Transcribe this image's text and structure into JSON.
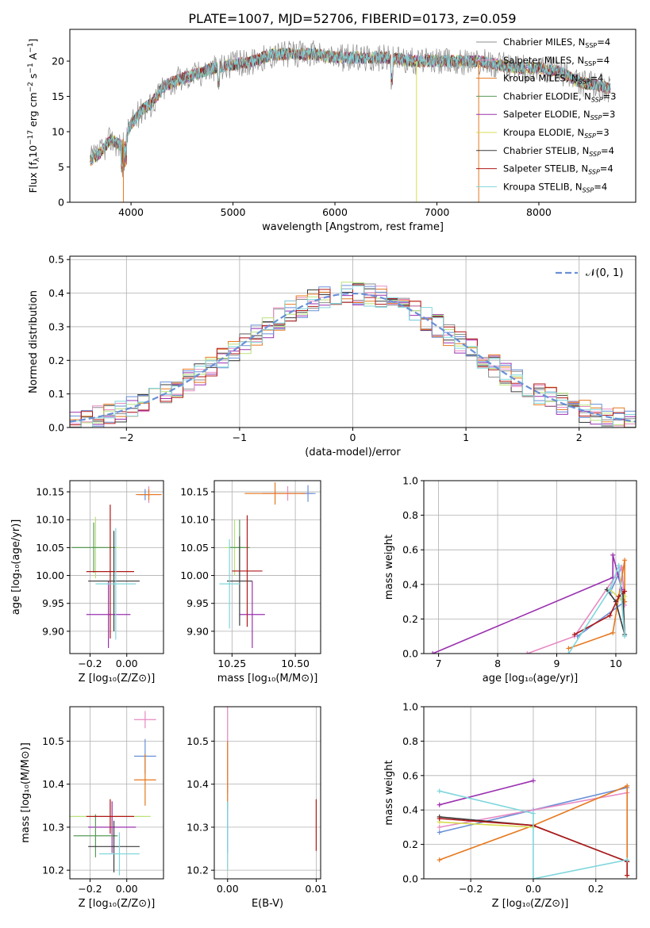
{
  "figure_title": "PLATE=1007, MJD=52706, FIBERID=0173, z=0.059",
  "colors": {
    "Chabrier MILES": "#8c8c8c",
    "Salpeter MILES": "#e78ac3",
    "Kroupa MILES": "#e6781e",
    "Chabrier ELODIE": "#5a9a5a",
    "Salpeter ELODIE": "#9b30b0",
    "Kroupa ELODIE": "#d8dc50",
    "Chabrier STELIB": "#3a3a3a",
    "Salpeter STELIB": "#b01818",
    "Kroupa STELIB": "#7fd6dc",
    "blue": "#6a8fd6",
    "lightgreen": "#b9e27a",
    "grid": "#b0b0b0"
  },
  "panels": {
    "spectrum": {
      "xlabel": "wavelength [Angstrom, rest frame]",
      "ylabel_main": "Flux [f",
      "ylabel_sub": "λ",
      "ylabel_rest": "10",
      "ylabel_exp": "−17",
      "ylabel_unit": " erg cm",
      "ylabel_u1": "−2",
      "ylabel_s": " s",
      "ylabel_u2": "−1",
      "ylabel_A": " A",
      "ylabel_u3": "−1",
      "ylabel_end": "]",
      "legend": [
        {
          "label": "Chabrier MILES, N",
          "sub": "SSP",
          "val": "=4"
        },
        {
          "label": "Salpeter MILES, N",
          "sub": "SSP",
          "val": "=4"
        },
        {
          "label": "Kroupa MILES, N",
          "sub": "SSP",
          "val": "=4"
        },
        {
          "label": "Chabrier ELODIE, N",
          "sub": "SSP",
          "val": "=3"
        },
        {
          "label": "Salpeter ELODIE, N",
          "sub": "SSP",
          "val": "=3"
        },
        {
          "label": "Kroupa ELODIE, N",
          "sub": "SSP",
          "val": "=3"
        },
        {
          "label": "Chabrier STELIB, N",
          "sub": "SSP",
          "val": "=4"
        },
        {
          "label": "Salpeter STELIB, N",
          "sub": "SSP",
          "val": "=4"
        },
        {
          "label": "Kroupa STELIB, N",
          "sub": "SSP",
          "val": "=4"
        }
      ]
    },
    "residuals": {
      "xlabel": "(data-model)/error",
      "ylabel": "Normed distribution",
      "legend": "𝒩(0, 1)"
    },
    "age_vs_Z": {
      "xlabel": "Z [log₁₀(Z/Z⊙)]",
      "ylabel": "age  [log₁₀(age/yr)]"
    },
    "age_vs_mass": {
      "xlabel": "mass [log₁₀(M/M⊙)]"
    },
    "weight_vs_age": {
      "xlabel": "age  [log₁₀(age/yr)]",
      "ylabel": "mass weight"
    },
    "mass_vs_Z": {
      "xlabel": "Z [log₁₀(Z/Z⊙)]",
      "ylabel": "mass [log₁₀(M/M⊙)]"
    },
    "mass_vs_ebv": {
      "xlabel": "E(B-V)"
    },
    "weight_vs_Z": {
      "xlabel": "Z [log₁₀(Z/Z⊙)]",
      "ylabel": "mass weight"
    }
  },
  "chart_data": [
    {
      "type": "line",
      "title": "PLATE=1007, MJD=52706, FIBERID=0173, z=0.059",
      "xlabel": "wavelength [Angstrom, rest frame]",
      "xlim": [
        3400,
        8950
      ],
      "ylim": [
        0,
        24.5
      ],
      "xticks": [
        4000,
        5000,
        6000,
        7000,
        8000
      ],
      "yticks": [
        0,
        5,
        10,
        15,
        20
      ],
      "spectrum_anchor_points": [
        [
          3600,
          6
        ],
        [
          3700,
          7
        ],
        [
          3800,
          9
        ],
        [
          3900,
          8
        ],
        [
          4000,
          11
        ],
        [
          4100,
          13
        ],
        [
          4200,
          14
        ],
        [
          4300,
          16
        ],
        [
          4400,
          17
        ],
        [
          4600,
          18
        ],
        [
          4800,
          19
        ],
        [
          5000,
          19.5
        ],
        [
          5200,
          20
        ],
        [
          5400,
          21
        ],
        [
          5600,
          21
        ],
        [
          5800,
          21
        ],
        [
          6000,
          20.5
        ],
        [
          6200,
          20.5
        ],
        [
          6500,
          20.5
        ],
        [
          6800,
          20
        ],
        [
          7000,
          20
        ],
        [
          7200,
          20
        ],
        [
          7400,
          20
        ],
        [
          7600,
          19.5
        ],
        [
          7800,
          19
        ],
        [
          8000,
          19
        ],
        [
          8200,
          18.5
        ],
        [
          8400,
          17
        ],
        [
          8600,
          16.5
        ],
        [
          8700,
          16
        ]
      ],
      "series": [
        {
          "name": "Chabrier MILES, NSSP=4"
        },
        {
          "name": "Salpeter MILES, NSSP=4"
        },
        {
          "name": "Kroupa MILES, NSSP=4"
        },
        {
          "name": "Chabrier ELODIE, NSSP=3"
        },
        {
          "name": "Salpeter ELODIE, NSSP=3"
        },
        {
          "name": "Kroupa ELODIE, NSSP=3"
        },
        {
          "name": "Chabrier STELIB, NSSP=4"
        },
        {
          "name": "Salpeter STELIB, NSSP=4"
        },
        {
          "name": "Kroupa STELIB, NSSP=4"
        }
      ]
    },
    {
      "type": "histogram",
      "xlabel": "(data-model)/error",
      "ylabel": "Normed distribution",
      "xlim": [
        -2.5,
        2.5
      ],
      "ylim": [
        0,
        0.51
      ],
      "xticks": [
        -2,
        -1,
        0,
        1,
        2
      ],
      "yticks": [
        0,
        0.1,
        0.2,
        0.3,
        0.4,
        0.5
      ],
      "bin_width": 0.1,
      "series": [
        {
          "name": "𝒩(0, 1)",
          "type": "gaussian",
          "mean": 0,
          "sigma": 1
        }
      ]
    },
    {
      "type": "errorbar",
      "xlabel": "Z [log₁₀(Z/Z⊙)]",
      "ylabel": "age  [log₁₀(age/yr)]",
      "xlim": [
        -0.31,
        0.2
      ],
      "ylim": [
        9.86,
        10.17
      ],
      "xticks": [
        -0.2,
        0.0
      ],
      "yticks": [
        9.9,
        9.95,
        10.0,
        10.05,
        10.1,
        10.15
      ],
      "points": [
        {
          "x": 0.12,
          "y": 10.145,
          "xerr": 0.06,
          "yerr": 0.015
        },
        {
          "x": 0.1,
          "y": 10.145,
          "xerr": 0.03,
          "yerr": 0.01
        },
        {
          "x": 0.12,
          "y": 10.145,
          "xerr": 0.07,
          "yerr": 0.01
        },
        {
          "x": -0.17,
          "y": 10.05,
          "xerr": 0.13,
          "yerr": 0.055
        },
        {
          "x": -0.1,
          "y": 9.93,
          "xerr": 0.12,
          "yerr": 0.06
        },
        {
          "x": -0.18,
          "y": 10.05,
          "xerr": 0.12,
          "yerr": 0.045
        },
        {
          "x": -0.07,
          "y": 9.99,
          "xerr": 0.14,
          "yerr": 0.09
        },
        {
          "x": -0.09,
          "y": 10.007,
          "xerr": 0.13,
          "yerr": 0.12
        },
        {
          "x": -0.06,
          "y": 9.985,
          "xerr": 0.11,
          "yerr": 0.1
        }
      ]
    },
    {
      "type": "errorbar",
      "xlabel": "mass [log₁₀(M/M⊙)]",
      "xlim": [
        10.18,
        10.6
      ],
      "ylim": [
        9.86,
        10.17
      ],
      "xticks": [
        10.25,
        10.5
      ],
      "yticks": [
        9.9,
        9.95,
        10.0,
        10.05,
        10.1,
        10.15
      ],
      "points": [
        {
          "x": 10.47,
          "y": 10.147,
          "xerr": 0.1,
          "yerr": 0.013
        },
        {
          "x": 10.55,
          "y": 10.147,
          "xerr": 0.03,
          "yerr": 0.015
        },
        {
          "x": 10.42,
          "y": 10.147,
          "xerr": 0.12,
          "yerr": 0.02
        },
        {
          "x": 10.26,
          "y": 10.05,
          "xerr": 0.04,
          "yerr": 0.05
        },
        {
          "x": 10.33,
          "y": 9.93,
          "xerr": 0.05,
          "yerr": 0.06
        },
        {
          "x": 10.28,
          "y": 10.05,
          "xerr": 0.04,
          "yerr": 0.05
        },
        {
          "x": 10.28,
          "y": 9.99,
          "xerr": 0.05,
          "yerr": 0.08
        },
        {
          "x": 10.31,
          "y": 10.008,
          "xerr": 0.06,
          "yerr": 0.1
        },
        {
          "x": 10.24,
          "y": 9.985,
          "xerr": 0.04,
          "yerr": 0.08
        }
      ]
    },
    {
      "type": "line",
      "xlabel": "age  [log₁₀(age/yr)]",
      "ylabel": "mass weight",
      "xlim": [
        6.75,
        10.35
      ],
      "ylim": [
        0,
        1.0
      ],
      "xticks": [
        7,
        8,
        9,
        10
      ],
      "yticks": [
        0.0,
        0.2,
        0.4,
        0.6,
        0.8,
        1.0
      ],
      "series": [
        {
          "name": "Chabrier MILES",
          "points": [
            [
              9.9,
              0.35
            ],
            [
              10.1,
              0.5
            ],
            [
              10.15,
              0.3
            ],
            [
              9.35,
              0.1
            ]
          ]
        },
        {
          "name": "Salpeter MILES",
          "points": [
            [
              8.5,
              0.0
            ],
            [
              9.3,
              0.1
            ],
            [
              10.1,
              0.5
            ],
            [
              10.15,
              0.28
            ]
          ]
        },
        {
          "name": "Kroupa MILES",
          "points": [
            [
              9.2,
              0.03
            ],
            [
              9.95,
              0.12
            ],
            [
              10.15,
              0.54
            ],
            [
              10.15,
              0.3
            ]
          ]
        },
        {
          "name": "Salpeter ELODIE",
          "points": [
            [
              6.9,
              0.0
            ],
            [
              9.95,
              0.44
            ],
            [
              9.95,
              0.57
            ],
            [
              10.1,
              0.37
            ]
          ]
        },
        {
          "name": "Kroupa ELODIE",
          "points": [
            [
              9.9,
              0.37
            ],
            [
              10.1,
              0.31
            ],
            [
              10.15,
              0.33
            ]
          ]
        },
        {
          "name": "Chabrier STELIB",
          "points": [
            [
              9.85,
              0.37
            ],
            [
              10.0,
              0.3
            ],
            [
              10.15,
              0.11
            ],
            [
              10.12,
              0.35
            ]
          ]
        },
        {
          "name": "Salpeter STELIB",
          "points": [
            [
              9.3,
              0.11
            ],
            [
              9.9,
              0.22
            ],
            [
              10.05,
              0.33
            ],
            [
              10.15,
              0.36
            ]
          ]
        },
        {
          "name": "Kroupa STELIB",
          "points": [
            [
              9.2,
              0.0
            ],
            [
              9.9,
              0.37
            ],
            [
              10.05,
              0.51
            ],
            [
              10.15,
              0.1
            ]
          ]
        }
      ]
    },
    {
      "type": "errorbar",
      "xlabel": "Z [log₁₀(Z/Z⊙)]",
      "ylabel": "mass [log₁₀(M/M⊙)]",
      "xlim": [
        -0.31,
        0.2
      ],
      "ylim": [
        10.18,
        10.58
      ],
      "xticks": [
        -0.2,
        0.0
      ],
      "yticks": [
        10.2,
        10.3,
        10.4,
        10.5
      ],
      "points": [
        {
          "x": 0.1,
          "y": 10.55,
          "xerr": 0.06,
          "yerr": 0.02
        },
        {
          "x": 0.1,
          "y": 10.465,
          "xerr": 0.06,
          "yerr": 0.04
        },
        {
          "x": 0.1,
          "y": 10.41,
          "xerr": 0.06,
          "yerr": 0.06
        },
        {
          "x": -0.09,
          "y": 10.325,
          "xerr": 0.22,
          "yerr": 0.04
        },
        {
          "x": -0.08,
          "y": 10.3,
          "xerr": 0.13,
          "yerr": 0.06
        },
        {
          "x": -0.17,
          "y": 10.28,
          "xerr": 0.12,
          "yerr": 0.05
        },
        {
          "x": -0.07,
          "y": 10.255,
          "xerr": 0.14,
          "yerr": 0.06
        },
        {
          "x": -0.09,
          "y": 10.325,
          "xerr": 0.13,
          "yerr": 0.04
        },
        {
          "x": -0.04,
          "y": 10.238,
          "xerr": 0.11,
          "yerr": 0.05
        }
      ]
    },
    {
      "type": "errorbar",
      "xlabel": "E(B-V)",
      "xlim": [
        -0.0015,
        0.0105
      ],
      "ylim": [
        10.18,
        10.58
      ],
      "xticks": [
        0.0,
        0.01
      ],
      "yticks": [
        10.2,
        10.3,
        10.4,
        10.5
      ],
      "points": [
        {
          "x": 0.0,
          "y": 10.48,
          "yerr": 0.1
        },
        {
          "x": 0.0,
          "y": 10.42,
          "yerr": 0.08
        },
        {
          "x": 0.0,
          "y": 10.3,
          "yerr": 0.06
        },
        {
          "x": 0.0,
          "y": 10.28,
          "yerr": 0.08
        },
        {
          "x": 0.01,
          "y": 10.305,
          "yerr": 0.06
        }
      ]
    },
    {
      "type": "line",
      "xlabel": "Z [log₁₀(Z/Z⊙)]",
      "ylabel": "mass weight",
      "xlim": [
        -0.35,
        0.33
      ],
      "ylim": [
        0,
        1.0
      ],
      "xticks": [
        -0.2,
        0.0,
        0.2
      ],
      "yticks": [
        0.0,
        0.2,
        0.4,
        0.6,
        0.8,
        1.0
      ],
      "series": [
        {
          "name": "Chabrier MILES",
          "points": [
            [
              -0.3,
              0.27
            ],
            [
              0.0,
              0.4
            ],
            [
              0.3,
              0.53
            ]
          ]
        },
        {
          "name": "Salpeter MILES",
          "points": [
            [
              -0.3,
              0.3
            ],
            [
              0.3,
              0.5
            ]
          ]
        },
        {
          "name": "Kroupa MILES",
          "points": [
            [
              -0.3,
              0.11
            ],
            [
              0.0,
              0.31
            ],
            [
              0.3,
              0.54
            ],
            [
              0.3,
              0.02
            ]
          ]
        },
        {
          "name": "Salpeter ELODIE",
          "points": [
            [
              -0.3,
              0.43
            ],
            [
              0.0,
              0.57
            ]
          ]
        },
        {
          "name": "Kroupa ELODIE",
          "points": [
            [
              -0.3,
              0.33
            ],
            [
              0.0,
              0.3
            ]
          ]
        },
        {
          "name": "Chabrier STELIB",
          "points": [
            [
              -0.3,
              0.36
            ],
            [
              0.0,
              0.31
            ],
            [
              0.3,
              0.1
            ]
          ]
        },
        {
          "name": "Salpeter STELIB",
          "points": [
            [
              -0.3,
              0.35
            ],
            [
              0.0,
              0.31
            ],
            [
              0.3,
              0.1
            ],
            [
              0.3,
              0.02
            ]
          ]
        },
        {
          "name": "Kroupa STELIB",
          "points": [
            [
              -0.3,
              0.51
            ],
            [
              0.0,
              0.38
            ],
            [
              0.0,
              0.0
            ],
            [
              0.3,
              0.11
            ]
          ]
        }
      ]
    }
  ]
}
